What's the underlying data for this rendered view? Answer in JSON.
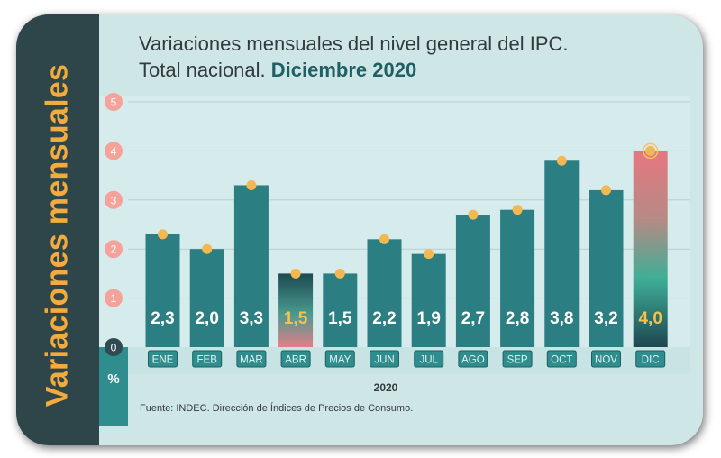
{
  "side_title": "Variaciones mensuales",
  "title": {
    "line1": "Variaciones mensuales del nivel general del IPC.",
    "line2_prefix": "Total nacional.",
    "line2_strong": "Diciembre 2020"
  },
  "source": "Fuente: INDEC. Dirección de Índices de Precios de Consumo.",
  "unit_label": "%",
  "colors": {
    "bar": "#2b7e82",
    "card_bg": "#cfe6e6",
    "sidebar": "#2e4549",
    "accent": "#f2ab3c",
    "tick_bubble": "#f4a29a",
    "month_box": "#2f8d8e"
  },
  "chart_data": {
    "type": "bar",
    "categories": [
      "ENE",
      "FEB",
      "MAR",
      "ABR",
      "MAY",
      "JUN",
      "JUL",
      "AGO",
      "SEP",
      "OCT",
      "NOV",
      "DIC"
    ],
    "values": [
      2.3,
      2.0,
      3.3,
      1.5,
      1.5,
      2.2,
      1.9,
      2.7,
      2.8,
      3.8,
      3.2,
      4.0
    ],
    "value_labels": [
      "2,3",
      "2,0",
      "3,3",
      "1,5",
      "1,5",
      "2,2",
      "1,9",
      "2,7",
      "2,8",
      "3,8",
      "3,2",
      "4,0"
    ],
    "highlighted": [
      "ABR",
      "DIC"
    ],
    "xlabel": "2020",
    "ylabel": "%",
    "yticks": [
      0,
      1,
      2,
      3,
      4,
      5
    ],
    "ylim": [
      0,
      5
    ],
    "grid": true
  }
}
